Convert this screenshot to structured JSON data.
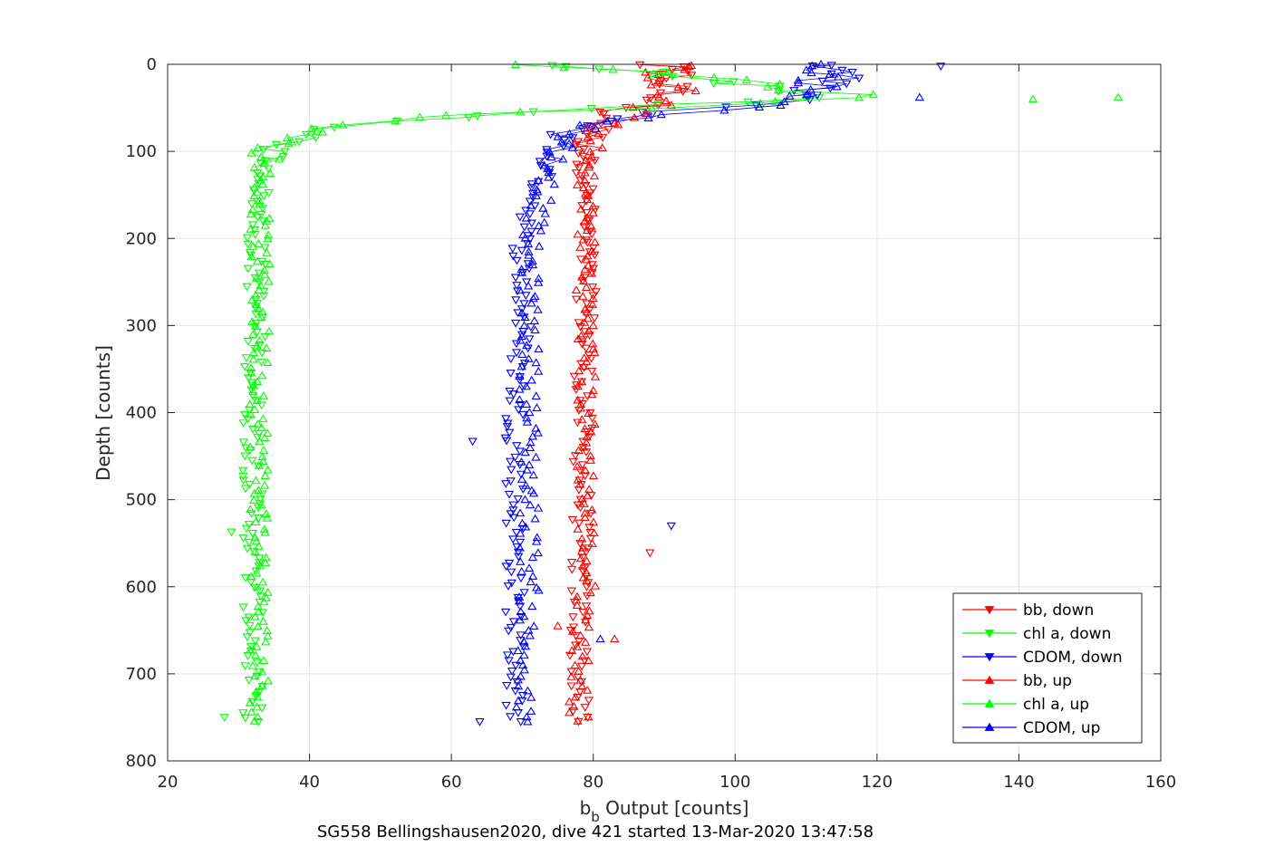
{
  "chart_data": {
    "type": "scatter",
    "title": "",
    "xlabel_main": "b",
    "xlabel_sub": "b",
    "xlabel_rest": " Output [counts]",
    "ylabel": "Depth [counts]",
    "caption": "SG558 Bellingshausen2020, dive 421 started 13-Mar-2020 13:47:58",
    "xlim": [
      20,
      160
    ],
    "ylim": [
      0,
      800
    ],
    "y_reversed": true,
    "grid": true,
    "legend_position": "bottom-right",
    "x_ticks": [
      "20",
      "40",
      "60",
      "80",
      "100",
      "120",
      "140",
      "160"
    ],
    "y_ticks": [
      "0",
      "100",
      "200",
      "300",
      "400",
      "500",
      "600",
      "700",
      "800"
    ],
    "series": [
      {
        "name": "bb, down",
        "color": "#ff0000",
        "marker": "triangle-down",
        "profile": [
          [
            0,
            88
          ],
          [
            10,
            91
          ],
          [
            20,
            92
          ],
          [
            30,
            90
          ],
          [
            40,
            89
          ],
          [
            50,
            85
          ],
          [
            60,
            82
          ],
          [
            70,
            81
          ],
          [
            80,
            80
          ],
          [
            100,
            79
          ],
          [
            150,
            79
          ],
          [
            200,
            79
          ],
          [
            300,
            79
          ],
          [
            400,
            78.5
          ],
          [
            500,
            78.5
          ],
          [
            600,
            78
          ],
          [
            700,
            78
          ],
          [
            755,
            78
          ]
        ],
        "outliers": [
          [
            88,
            561
          ],
          [
            77,
            580
          ]
        ]
      },
      {
        "name": "chl a, down",
        "color": "#00ff00",
        "marker": "triangle-down",
        "profile": [
          [
            0,
            70
          ],
          [
            5,
            80
          ],
          [
            10,
            90
          ],
          [
            20,
            100
          ],
          [
            30,
            105
          ],
          [
            40,
            110
          ],
          [
            45,
            95
          ],
          [
            55,
            70
          ],
          [
            62,
            60
          ],
          [
            70,
            45
          ],
          [
            80,
            40
          ],
          [
            90,
            37
          ],
          [
            100,
            35
          ],
          [
            120,
            34
          ],
          [
            150,
            33
          ],
          [
            200,
            32.5
          ],
          [
            300,
            32.5
          ],
          [
            400,
            32
          ],
          [
            500,
            32
          ],
          [
            600,
            32
          ],
          [
            700,
            32
          ],
          [
            755,
            32
          ]
        ],
        "outliers": [
          [
            29,
            537
          ],
          [
            28,
            750
          ]
        ]
      },
      {
        "name": "CDOM, down",
        "color": "#0000ff",
        "marker": "triangle-down",
        "profile": [
          [
            0,
            112
          ],
          [
            10,
            115
          ],
          [
            20,
            113
          ],
          [
            30,
            111
          ],
          [
            40,
            110
          ],
          [
            50,
            95
          ],
          [
            60,
            85
          ],
          [
            70,
            80
          ],
          [
            80,
            76
          ],
          [
            100,
            74
          ],
          [
            150,
            72
          ],
          [
            200,
            70
          ],
          [
            300,
            70
          ],
          [
            400,
            69
          ],
          [
            500,
            69
          ],
          [
            600,
            69
          ],
          [
            700,
            69
          ],
          [
            755,
            69
          ]
        ],
        "outliers": [
          [
            129,
            2
          ],
          [
            91,
            530
          ],
          [
            63,
            433
          ],
          [
            64,
            755
          ]
        ]
      },
      {
        "name": "bb, up",
        "color": "#ff0000",
        "marker": "triangle-up",
        "profile": [
          [
            0,
            90
          ],
          [
            10,
            91
          ],
          [
            20,
            91
          ],
          [
            30,
            91
          ],
          [
            40,
            90
          ],
          [
            50,
            88
          ],
          [
            60,
            84
          ],
          [
            70,
            82
          ],
          [
            80,
            80
          ],
          [
            100,
            79
          ],
          [
            150,
            79
          ],
          [
            200,
            79
          ],
          [
            300,
            79
          ],
          [
            400,
            79
          ],
          [
            500,
            79
          ],
          [
            600,
            79
          ],
          [
            700,
            78
          ],
          [
            755,
            78
          ]
        ],
        "outliers": [
          [
            83,
            660
          ],
          [
            75,
            645
          ]
        ]
      },
      {
        "name": "chl a, up",
        "color": "#00ff00",
        "marker": "triangle-up",
        "profile": [
          [
            0,
            72
          ],
          [
            10,
            88
          ],
          [
            20,
            102
          ],
          [
            30,
            110
          ],
          [
            38,
            120
          ],
          [
            42,
            110
          ],
          [
            50,
            90
          ],
          [
            55,
            70
          ],
          [
            62,
            55
          ],
          [
            70,
            44
          ],
          [
            80,
            40
          ],
          [
            90,
            36
          ],
          [
            100,
            34
          ],
          [
            120,
            33.5
          ],
          [
            150,
            33
          ],
          [
            200,
            33
          ],
          [
            300,
            33
          ],
          [
            400,
            33
          ],
          [
            500,
            33
          ],
          [
            600,
            33
          ],
          [
            700,
            33
          ],
          [
            755,
            33
          ]
        ],
        "outliers": [
          [
            154,
            38
          ],
          [
            142,
            40
          ]
        ]
      },
      {
        "name": "CDOM, up",
        "color": "#0000ff",
        "marker": "triangle-up",
        "profile": [
          [
            0,
            110
          ],
          [
            10,
            112
          ],
          [
            20,
            112
          ],
          [
            30,
            111
          ],
          [
            40,
            112
          ],
          [
            50,
            100
          ],
          [
            60,
            88
          ],
          [
            70,
            80
          ],
          [
            80,
            77
          ],
          [
            100,
            75
          ],
          [
            150,
            73
          ],
          [
            200,
            71
          ],
          [
            300,
            71
          ],
          [
            400,
            71
          ],
          [
            500,
            71
          ],
          [
            600,
            71
          ],
          [
            700,
            70
          ],
          [
            755,
            70
          ]
        ],
        "outliers": [
          [
            126,
            38
          ],
          [
            81,
            660
          ]
        ]
      }
    ]
  }
}
